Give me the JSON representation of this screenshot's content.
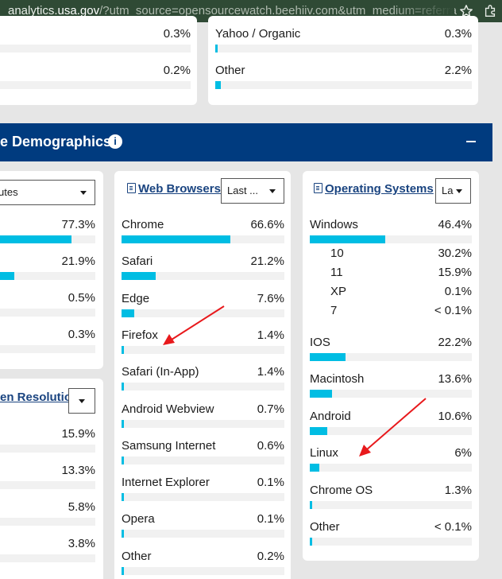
{
  "browser": {
    "url_host_prefix": "analytics.",
    "url_host": "usa.gov",
    "url_rest": "/?utm_source=opensourcewatch.beehiiv.com&utm_medium=referra"
  },
  "top_left": {
    "values": [
      "0.3%",
      "0.2%"
    ]
  },
  "top_right": {
    "rows": [
      {
        "name": "Yahoo / Organic",
        "pct": "0.3%",
        "level": 0.3
      },
      {
        "name": "Other",
        "pct": "2.2%",
        "level": 2.2
      }
    ]
  },
  "banner": {
    "title": "e Demographics",
    "info": "i"
  },
  "visit_duration": {
    "select_value": "utes",
    "values": [
      {
        "pct": "77.3%",
        "level": 77.3
      },
      {
        "pct": "21.9%",
        "level": 21.9
      },
      {
        "pct": "0.5%",
        "level": 0.5
      },
      {
        "pct": "0.3%",
        "level": 0.3
      }
    ]
  },
  "screen_resolution": {
    "title": "en Resolution",
    "values": [
      "15.9%",
      "13.3%",
      "5.8%",
      "3.8%"
    ]
  },
  "web_browsers": {
    "title": "Web Browsers",
    "select_value": "Last ...",
    "rows": [
      {
        "name": "Chrome",
        "pct": "66.6%",
        "level": 66.6
      },
      {
        "name": "Safari",
        "pct": "21.2%",
        "level": 21.2
      },
      {
        "name": "Edge",
        "pct": "7.6%",
        "level": 7.6
      },
      {
        "name": "Firefox",
        "pct": "1.4%",
        "level": 1.4
      },
      {
        "name": "Safari (In-App)",
        "pct": "1.4%",
        "level": 1.4
      },
      {
        "name": "Android Webview",
        "pct": "0.7%",
        "level": 0.7
      },
      {
        "name": "Samsung Internet",
        "pct": "0.6%",
        "level": 0.6
      },
      {
        "name": "Internet Explorer",
        "pct": "0.1%",
        "level": 0.1
      },
      {
        "name": "Opera",
        "pct": "0.1%",
        "level": 0.1
      },
      {
        "name": "Other",
        "pct": "0.2%",
        "level": 0.2
      }
    ]
  },
  "operating_systems": {
    "title": "Operating Systems",
    "select_value": "La",
    "windows": {
      "name": "Windows",
      "pct": "46.4%",
      "level": 46.4
    },
    "windows_versions": [
      {
        "name": "10",
        "pct": "30.2%"
      },
      {
        "name": "11",
        "pct": "15.9%"
      },
      {
        "name": "XP",
        "pct": "0.1%"
      },
      {
        "name": "7",
        "pct": "< 0.1%"
      }
    ],
    "rows": [
      {
        "name": "IOS",
        "pct": "22.2%",
        "level": 22.2
      },
      {
        "name": "Macintosh",
        "pct": "13.6%",
        "level": 13.6
      },
      {
        "name": "Android",
        "pct": "10.6%",
        "level": 10.6
      },
      {
        "name": "Linux",
        "pct": "6%",
        "level": 6
      },
      {
        "name": "Chrome OS",
        "pct": "1.3%",
        "level": 1.3
      },
      {
        "name": "Other",
        "pct": "< 0.1%",
        "level": 0.05
      }
    ]
  },
  "colors": {
    "bar": "#00bde3",
    "banner": "#003b7f",
    "title_link": "#1a4480",
    "arrow": "#e8191c"
  }
}
